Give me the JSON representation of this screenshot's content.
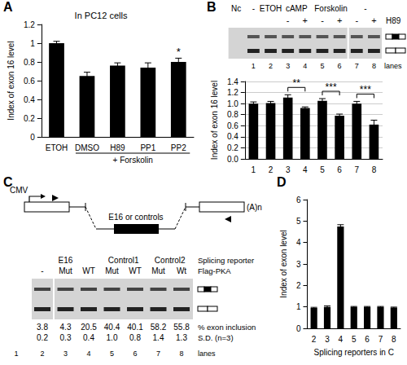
{
  "chart_data": [
    {
      "type": "bar",
      "panel_label": "A",
      "title": "In PC12 cells",
      "y_label": "Index of exon 16 level",
      "categories": [
        "ETOH",
        "DMSO",
        "H89",
        "PP1",
        "PP2"
      ],
      "values": [
        1.0,
        0.65,
        0.76,
        0.74,
        0.8
      ],
      "errors": [
        0.02,
        0.04,
        0.03,
        0.05,
        0.04
      ],
      "color": "#000000",
      "ylim": [
        0,
        1.2
      ],
      "yticks": [
        0,
        0.2,
        0.4,
        0.6,
        0.8,
        1,
        1.2
      ],
      "grid": false,
      "annotations": [
        {
          "text": "*",
          "from": "PP2",
          "to": "PP2"
        }
      ],
      "group_label": {
        "text": "+ Forskolin",
        "from": "DMSO",
        "to": "PP2"
      }
    },
    {
      "type": "bar",
      "panel_label": "B",
      "y_label": "Index of exon 16 level",
      "categories": [
        "1",
        "2",
        "3",
        "4",
        "5",
        "6",
        "7",
        "8"
      ],
      "values": [
        1.0,
        1.01,
        1.11,
        0.92,
        1.05,
        0.78,
        1.0,
        0.62
      ],
      "errors": [
        0.03,
        0.03,
        0.05,
        0.02,
        0.04,
        0.03,
        0.04,
        0.08
      ],
      "color": "#000000",
      "ylim": [
        0,
        1.4
      ],
      "yticks": [
        {
          "value": 0,
          "label": "0.0"
        },
        0.2,
        0.4,
        0.6,
        0.8,
        {
          "value": 1,
          "label": "1.0"
        },
        1.2,
        1.4
      ],
      "grid": true,
      "annotations": [
        {
          "text": "**",
          "from": "3",
          "to": "4"
        },
        {
          "text": "***",
          "from": "5",
          "to": "6"
        },
        {
          "text": "***",
          "from": "7",
          "to": "8"
        }
      ],
      "gel": {
        "lanes": [
          null,
          "1",
          "2",
          "3",
          "4",
          "5",
          "6",
          "7",
          "8"
        ],
        "lanes_label": "lanes",
        "treatments": [
          {
            "text": "Nc",
            "span": 1
          },
          {
            "text": "-",
            "span": 1
          },
          {
            "text": "ETOH",
            "span": 1
          },
          {
            "text": "cAMP",
            "span": 2
          },
          {
            "text": "Forskolin",
            "span": 2
          },
          {
            "text": "-",
            "span": 2
          }
        ],
        "h89": {
          "label": "H89",
          "values": [
            null,
            null,
            null,
            "-",
            "+",
            "-",
            "+",
            "-",
            "+"
          ]
        }
      }
    },
    {
      "type": "bar",
      "panel_label": "D",
      "y_label": "Index of exon level",
      "x_label": "Splicing reporters in C",
      "categories": [
        "2",
        "3",
        "4",
        "5",
        "6",
        "7",
        "8"
      ],
      "values": [
        0.95,
        1.0,
        4.75,
        1.0,
        1.0,
        1.0,
        0.97
      ],
      "errors": [
        0.03,
        0.05,
        0.08,
        0.02,
        0.02,
        0.02,
        0.02
      ],
      "color": "#000000",
      "ylim": [
        0,
        6
      ],
      "yticks": [
        0,
        1,
        2,
        3,
        4,
        5,
        6
      ],
      "grid": false
    }
  ],
  "panel_c": {
    "panel_label": "C",
    "diagram": {
      "promoter": "CMV",
      "insert": "E16 or controls",
      "tail": "(A)n"
    },
    "gel": {
      "lanes": [
        "1",
        "2",
        "3",
        "4",
        "5",
        "6",
        "7",
        "8"
      ],
      "lanes_label": "lanes",
      "reporters": {
        "label": "Splicing reporter",
        "groups": [
          {
            "text": null,
            "span": 1
          },
          {
            "text": "E16",
            "span": 3
          },
          {
            "text": "Control1",
            "span": 2
          },
          {
            "text": "Control2",
            "span": 2
          }
        ]
      },
      "flag_pka": {
        "label": "Flag-PKA",
        "values": [
          null,
          "-",
          "Mut",
          "WT",
          "Mut",
          "WT",
          "Mut",
          "Wt"
        ]
      },
      "inclusion": {
        "label": "% exon inclusion",
        "values": [
          null,
          3.8,
          4.3,
          20.5,
          40.4,
          40.1,
          58.2,
          55.8
        ]
      },
      "sd": {
        "label": "S.D. (n=3)",
        "values": [
          null,
          0.2,
          0.3,
          0.4,
          1.0,
          0.8,
          1.4,
          1.3
        ]
      }
    }
  }
}
